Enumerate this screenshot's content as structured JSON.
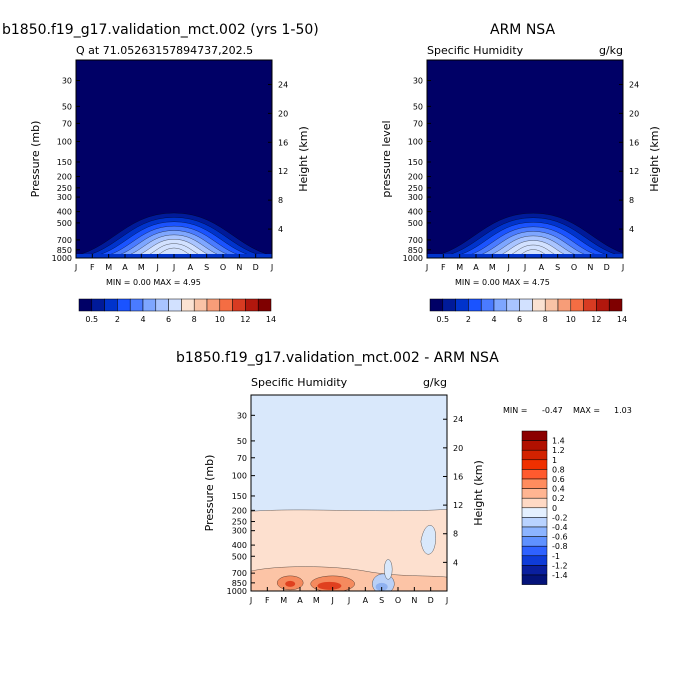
{
  "chart_data": [
    {
      "id": "p1",
      "type": "contour",
      "title": "b1850.f19_g17.validation_mct.002 (yrs 1-50)",
      "subtitle_left": "Q at 71.05263157894737,202.5",
      "subtitle_right": "",
      "ylabel": "Pressure (mb)",
      "ylabel2": "Height (km)",
      "months": [
        "J",
        "F",
        "M",
        "A",
        "M",
        "J",
        "J",
        "A",
        "S",
        "O",
        "N",
        "D",
        "J"
      ],
      "pressure_ticks": [
        30,
        50,
        70,
        100,
        150,
        200,
        250,
        300,
        400,
        500,
        700,
        850,
        1000
      ],
      "height_ticks": [
        4,
        8,
        12,
        16,
        20,
        24
      ],
      "stats": "MIN = 0.00 MAX = 4.95",
      "peak_month_index": 6.0,
      "peak_value": 4.95
    },
    {
      "id": "p2",
      "type": "contour",
      "title": "ARM NSA",
      "subtitle_left": "Specific Humidity",
      "subtitle_right": "g/kg",
      "ylabel": "pressure level",
      "ylabel2": "Height (km)",
      "months": [
        "J",
        "F",
        "M",
        "A",
        "M",
        "J",
        "J",
        "A",
        "S",
        "O",
        "N",
        "D",
        "J"
      ],
      "pressure_ticks": [
        30,
        50,
        70,
        100,
        150,
        200,
        250,
        300,
        400,
        500,
        700,
        850,
        1000
      ],
      "height_ticks": [
        4,
        8,
        12,
        16,
        20,
        24
      ],
      "stats": "MIN = 0.00 MAX = 4.75",
      "peak_month_index": 6.5,
      "peak_value": 4.75
    },
    {
      "id": "p3",
      "type": "contour",
      "title": "b1850.f19_g17.validation_mct.002 - ARM NSA",
      "subtitle_left": "Specific Humidity",
      "subtitle_right": "g/kg",
      "ylabel": "Pressure (mb)",
      "ylabel2": "Height (km)",
      "months": [
        "J",
        "F",
        "M",
        "A",
        "M",
        "J",
        "J",
        "A",
        "S",
        "O",
        "N",
        "D",
        "J"
      ],
      "pressure_ticks": [
        30,
        50,
        70,
        100,
        150,
        200,
        250,
        300,
        400,
        500,
        700,
        850,
        1000
      ],
      "height_ticks": [
        4,
        8,
        12,
        16,
        20,
        24
      ],
      "stats_min_label": "MIN =",
      "stats_min_value": "-0.47",
      "stats_max_label": "MAX =",
      "stats_max_value": "1.03"
    }
  ],
  "colorbar_abs": {
    "labels": [
      "0.5",
      "2",
      "4",
      "6",
      "8",
      "10",
      "12",
      "14"
    ],
    "colors": [
      "#000066",
      "#001a99",
      "#0033cc",
      "#1a53ff",
      "#4a7bff",
      "#7ea6ff",
      "#a9c4ff",
      "#d2e1ff",
      "#fbe2d2",
      "#f9c3a6",
      "#f79d78",
      "#f46d43",
      "#d83b22",
      "#b2170d",
      "#7f0000"
    ]
  },
  "colorbar_diff": {
    "labels": [
      "1.4",
      "1.2",
      "1",
      "0.8",
      "0.6",
      "0.4",
      "0.2",
      "0",
      "-0.2",
      "-0.4",
      "-0.6",
      "-0.8",
      "-1",
      "-1.2",
      "-1.4"
    ],
    "colors": [
      "#8b0000",
      "#b11000",
      "#d32200",
      "#f03000",
      "#ff5a2e",
      "#ff8c5e",
      "#ffb592",
      "#ffd9c4",
      "#e4f0ff",
      "#b9d3ff",
      "#8cb4ff",
      "#5f91ff",
      "#2f62ff",
      "#0f3cd8",
      "#0a1f9e",
      "#04137a"
    ]
  }
}
